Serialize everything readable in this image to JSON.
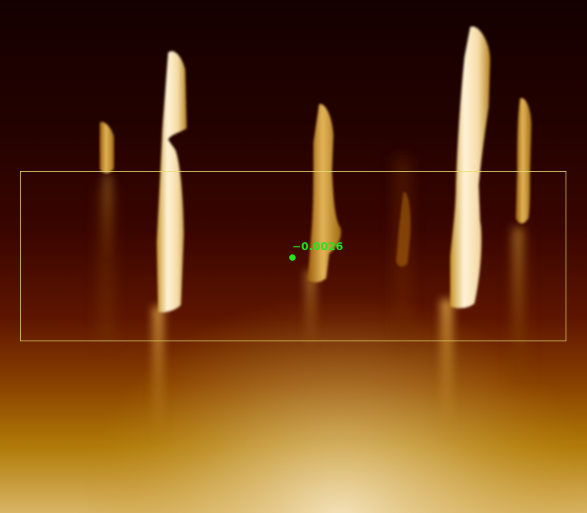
{
  "image": {
    "subject": "scan-height-map",
    "colormap": [
      "#1a0000",
      "#2e0300",
      "#5a1200",
      "#8a3c00",
      "#b8860b",
      "#e8cfa0",
      "#fff4dc"
    ]
  },
  "measurement": {
    "value_label": "−0.0026",
    "marker_color": "#22e61c",
    "label_color": "#22e61c"
  },
  "selection": {
    "color": "#e8e070"
  }
}
